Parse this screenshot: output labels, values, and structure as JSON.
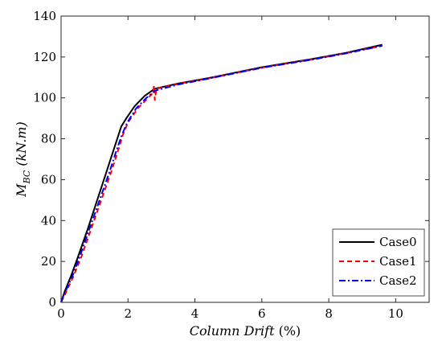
{
  "chart_data": {
    "type": "line",
    "xlabel": {
      "main": "Column Drift",
      "unit": "(%)"
    },
    "ylabel": {
      "main": "M",
      "sub": "BC",
      "unit": "(kN.m)"
    },
    "xlim": [
      0,
      11
    ],
    "ylim": [
      0,
      140
    ],
    "xticks": [
      0,
      2,
      4,
      6,
      8,
      10
    ],
    "yticks": [
      0,
      20,
      40,
      60,
      80,
      100,
      120,
      140
    ],
    "grid": false,
    "legend_position": "bottom-right",
    "series": [
      {
        "name": "Case0",
        "color": "#000000",
        "dash": "solid",
        "points": [
          [
            0,
            0
          ],
          [
            0.1,
            5
          ],
          [
            0.3,
            13
          ],
          [
            0.5,
            22
          ],
          [
            0.8,
            36
          ],
          [
            1.1,
            51
          ],
          [
            1.4,
            66
          ],
          [
            1.6,
            76
          ],
          [
            1.8,
            86
          ],
          [
            1.95,
            90
          ],
          [
            2.2,
            96
          ],
          [
            2.5,
            101
          ],
          [
            2.8,
            104.5
          ],
          [
            3.5,
            107
          ],
          [
            4.5,
            110
          ],
          [
            6,
            115
          ],
          [
            7.5,
            119
          ],
          [
            8.5,
            122
          ],
          [
            9.6,
            126
          ]
        ]
      },
      {
        "name": "Case1",
        "color": "#ff0000",
        "dash": "6,4",
        "points": [
          [
            0,
            0
          ],
          [
            0.15,
            5
          ],
          [
            0.35,
            12
          ],
          [
            0.6,
            22
          ],
          [
            0.9,
            36
          ],
          [
            1.2,
            50
          ],
          [
            1.5,
            64
          ],
          [
            1.7,
            74
          ],
          [
            1.85,
            82
          ],
          [
            2.0,
            88
          ],
          [
            2.3,
            95
          ],
          [
            2.6,
            100
          ],
          [
            2.75,
            102.5
          ],
          [
            2.78,
            106
          ],
          [
            2.8,
            99
          ],
          [
            2.85,
            104.5
          ],
          [
            3.5,
            106.8
          ],
          [
            4.5,
            109.8
          ],
          [
            6,
            114.8
          ],
          [
            7.5,
            118.8
          ],
          [
            8.5,
            121.8
          ],
          [
            9.6,
            125.5
          ]
        ]
      },
      {
        "name": "Case2",
        "color": "#0000ff",
        "dash": "8,3,2,3",
        "points": [
          [
            0,
            0
          ],
          [
            0.12,
            5
          ],
          [
            0.32,
            12
          ],
          [
            0.55,
            22
          ],
          [
            0.85,
            36
          ],
          [
            1.15,
            50
          ],
          [
            1.45,
            64
          ],
          [
            1.65,
            74
          ],
          [
            1.82,
            82
          ],
          [
            1.98,
            88
          ],
          [
            2.25,
            95
          ],
          [
            2.55,
            100
          ],
          [
            2.8,
            103.5
          ],
          [
            3.5,
            106.5
          ],
          [
            4.5,
            109.7
          ],
          [
            6,
            114.7
          ],
          [
            7.5,
            118.7
          ],
          [
            8.5,
            121.7
          ],
          [
            9.6,
            125.5
          ]
        ]
      }
    ]
  }
}
